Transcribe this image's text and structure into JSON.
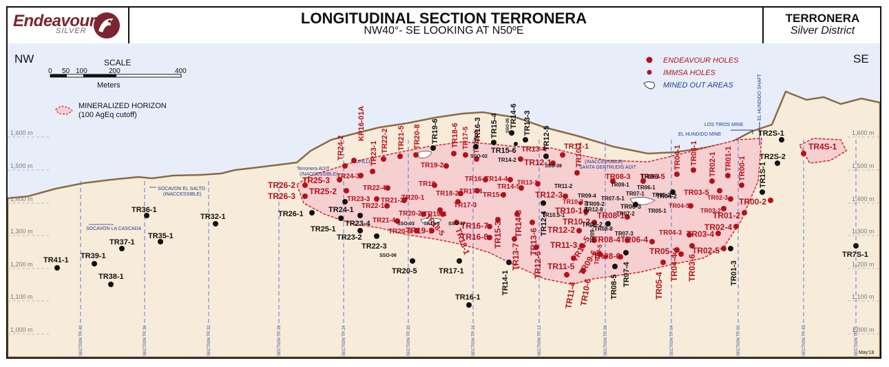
{
  "header": {
    "logo_name": "Endeavour",
    "logo_sub": "SILVER",
    "title_line1": "LONGITUDINAL SECTION TERRONERA",
    "title_line2": "NW40°- SE LOOKING AT N50ºE",
    "district_line1": "TERRONERA",
    "district_line2": "Silver District"
  },
  "orientation": {
    "left": "NW",
    "right": "SE"
  },
  "scale": {
    "title": "SCALE",
    "ticks": [
      "0",
      "50",
      "100",
      "200",
      "400"
    ],
    "unit": "Meters"
  },
  "legend": {
    "endeavour": "ENDEAVOUR HOLES",
    "immsa": "IMMSA HOLES",
    "mined": "MINED OUT AREAS",
    "mineralized_line1": "MINERALIZED HORIZON",
    "mineralized_line2": "(100 AgEq cutoff)"
  },
  "elevations": [
    "1,600 m",
    "1,500 m",
    "1,400 m",
    "1,300 m",
    "1,200 m",
    "1,100 m",
    "1,000 m"
  ],
  "sections": [
    "SECTION TR 40",
    "SECTION TR 36",
    "SECTION TR 32",
    "SECTION TR 28",
    "SECTION TR 24",
    "SECTION TR 20",
    "SECTION TR 16",
    "SECTION TR 12",
    "SECTION TR 08",
    "SECTION TR 04",
    "SECTION TR 00",
    "SECTION TR 4S",
    "SECTION TR7S"
  ],
  "features": {
    "socavon_salto_1": "SOCAVON EL SALTO",
    "socavon_salto_2": "(INACCESSIBLE)",
    "socavon_cascada": "SOCAVON LA CASCADA",
    "terronera_adit_1": "Terronera ADIT",
    "terronera_adit_2": "(INACCESSIBLE)",
    "lupillo": "LUPILLO",
    "santa_gertrudis_1": "(INACCESSIBLE)",
    "santa_gertrudis_2": "SANTA GERTRUDIS ADIT",
    "los_tiros": "LOS TIROS MINE",
    "el_hundido_mine": "EL HUNDIDO MINE",
    "el_hundido_shaft": "EL HUNDIDO SHAFT"
  },
  "endeavour_labels": [
    "KP16-01A",
    "TR24-2",
    "TR22-2",
    "TR23-1",
    "TR21-5",
    "TR20-8",
    "TR18-6",
    "TR17-5",
    "TR16-4",
    "TR13-4",
    "TR11-1",
    "TR10-1",
    "TR08-3",
    "TR05-5",
    "TR04-1",
    "TR03-1",
    "TR02-1",
    "TR01-1",
    "TR00-1",
    "TR26-2",
    "TR26-3",
    "TR25-3",
    "TR25-2",
    "TR24-3",
    "TR23-3",
    "TR22-4",
    "TR22-1",
    "TR21-3",
    "TR20-1",
    "TR20-2",
    "TR19-4",
    "TR19-2",
    "TR19",
    "TR18-2",
    "TR17-4",
    "TR16-5",
    "TR15-5",
    "TR14-4",
    "TR14-5",
    "TR13-1",
    "TR12-3",
    "TR12-1",
    "TR10-3",
    "TR10-2",
    "TR10-1",
    "TR12-2",
    "TR11-3",
    "TR10-5",
    "TR09-6",
    "TR08-1",
    "TR08-4",
    "TR08-6",
    "TR06-4",
    "TR05-3",
    "TR04-3",
    "TR03-4",
    "TR02-4",
    "TR02-5",
    "TR01-2",
    "TR00-2",
    "TR03-5",
    "TR02-3",
    "TR03-2",
    "TR04-5",
    "TR4S-1",
    "TR19-1",
    "TR20-3",
    "TR21-4",
    "TR16-7",
    "TR16-8",
    "TR15-3",
    "TR14-8",
    "TR13-6",
    "TR13-7",
    "TR12-6",
    "TR11-5",
    "TR11-4",
    "TR10-6",
    "TR09-5",
    "TR05-4",
    "TR04-4",
    "TR03-6",
    "TR18-5",
    "TR17-3",
    "TR18-1"
  ],
  "immsa_labels": [
    "TR19-6",
    "TR16-3",
    "TR15-4",
    "TR14-6",
    "TR13-3",
    "TR12-5",
    "TR15-6",
    "TR2S-1",
    "TR2S-2",
    "TR1S-1",
    "TR04-2",
    "TR06-3",
    "TR08-2",
    "TR07-4",
    "TR08-5",
    "TR12-4",
    "TR14-1",
    "TR17-1",
    "TR16-1",
    "TR20-5",
    "TR22-3",
    "TR23-2",
    "TR23-4",
    "TR24-1",
    "TR25-1",
    "TR26-1",
    "TR01-3",
    "TR7S-1",
    "TR32-1",
    "TR35-1",
    "TR36-1",
    "TR37-1",
    "TR38-1",
    "TR39-1",
    "TR41-1",
    "SSO-06",
    "SSO-03",
    "SSO-07",
    "SSO-08",
    "SSO-02",
    "SSO-05",
    "SSO-04",
    "TR19-5",
    "TR14-2",
    "TR12-8",
    "TR11-2",
    "TR07-1",
    "TR07-2",
    "TR07-3",
    "TR07-5-1",
    "TR06-1",
    "TR06-2",
    "TR05-1",
    "TR05-2",
    "TR09-1",
    "TR09-2",
    "TR09-3",
    "TR09-4",
    "TR08-8",
    "TR10.5-1"
  ],
  "date_stamp": "May'18"
}
